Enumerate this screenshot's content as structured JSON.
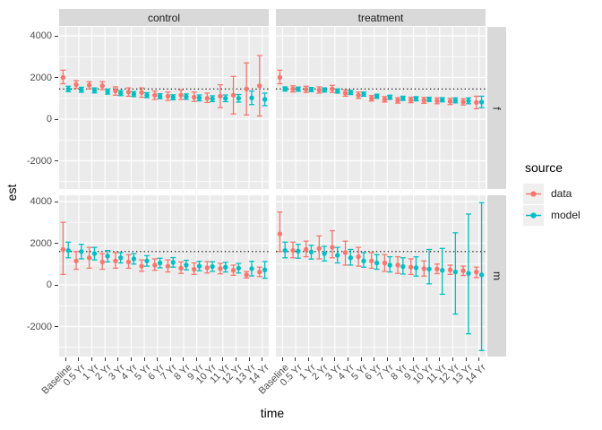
{
  "chart_data": {
    "type": "pointrange-faceted",
    "xlabel": "time",
    "ylabel": "est",
    "facet_cols": [
      "control",
      "treatment"
    ],
    "facet_rows": [
      "f",
      "m"
    ],
    "categories": [
      "Baseline",
      "0.5 Yr",
      "1 Yr",
      "2 Yr",
      "3 Yr",
      "4 Yr",
      "5 Yr",
      "6 Yr",
      "7 Yr",
      "8 Yr",
      "9 Yr",
      "10 Yr",
      "11 Yr",
      "12 Yr",
      "13 Yr",
      "14 Yr"
    ],
    "yticks": [
      4000,
      2000,
      0,
      -2000
    ],
    "yminor": [
      3000,
      1000,
      -1000,
      -3000
    ],
    "ylim_top": [
      4430,
      -3430
    ],
    "grid": true,
    "panel_bg": "#EBEBEB",
    "grid_color": "#FFFFFF",
    "strip_bg": "#D9D9D9",
    "series_colors": {
      "data": "#F8766D",
      "model": "#00BFC4"
    },
    "reference_lines": {
      "f": 1450,
      "m": 1600
    },
    "legend": {
      "title": "source",
      "position": "right",
      "items": [
        {
          "label": "data"
        },
        {
          "label": "model"
        }
      ]
    },
    "panels": [
      {
        "col": "control",
        "row": "f",
        "series": [
          {
            "name": "data",
            "est": [
              2000,
              1660,
              1630,
              1600,
              1350,
              1300,
              1280,
              1150,
              1100,
              1150,
              1050,
              1000,
              1100,
              1150,
              1450,
              1600
            ],
            "lo": [
              1700,
              1480,
              1450,
              1420,
              1150,
              1100,
              1050,
              950,
              900,
              950,
              850,
              800,
              550,
              250,
              200,
              150
            ],
            "hi": [
              2350,
              1850,
              1800,
              1800,
              1550,
              1500,
              1500,
              1350,
              1300,
              1400,
              1300,
              1250,
              1650,
              2050,
              2700,
              3050
            ]
          },
          {
            "name": "model",
            "est": [
              1450,
              1410,
              1380,
              1320,
              1250,
              1200,
              1150,
              1100,
              1050,
              1080,
              1020,
              980,
              1000,
              1000,
              1020,
              950
            ],
            "lo": [
              1320,
              1290,
              1260,
              1200,
              1130,
              1080,
              1030,
              980,
              930,
              950,
              880,
              840,
              840,
              820,
              700,
              650
            ],
            "hi": [
              1580,
              1530,
              1500,
              1440,
              1370,
              1320,
              1270,
              1220,
              1170,
              1210,
              1160,
              1120,
              1160,
              1180,
              1350,
              1250
            ]
          }
        ]
      },
      {
        "col": "treatment",
        "row": "f",
        "series": [
          {
            "name": "data",
            "est": [
              2000,
              1450,
              1430,
              1400,
              1450,
              1250,
              1150,
              1000,
              950,
              900,
              920,
              900,
              880,
              850,
              830,
              800
            ],
            "lo": [
              1700,
              1300,
              1280,
              1250,
              1280,
              1100,
              1000,
              870,
              820,
              770,
              790,
              760,
              740,
              700,
              680,
              500
            ],
            "hi": [
              2350,
              1600,
              1580,
              1550,
              1620,
              1400,
              1300,
              1130,
              1080,
              1030,
              1050,
              1040,
              1020,
              1000,
              980,
              1100
            ]
          },
          {
            "name": "model",
            "est": [
              1450,
              1440,
              1420,
              1400,
              1350,
              1280,
              1200,
              1100,
              1050,
              1000,
              980,
              950,
              930,
              900,
              880,
              820
            ],
            "lo": [
              1350,
              1340,
              1320,
              1300,
              1250,
              1180,
              1100,
              1000,
              950,
              900,
              880,
              850,
              830,
              780,
              740,
              550
            ],
            "hi": [
              1550,
              1540,
              1520,
              1500,
              1450,
              1380,
              1300,
              1200,
              1150,
              1100,
              1080,
              1050,
              1030,
              1020,
              1020,
              1100
            ]
          }
        ]
      },
      {
        "col": "control",
        "row": "m",
        "series": [
          {
            "name": "data",
            "est": [
              1700,
              1150,
              1300,
              1100,
              1150,
              1100,
              900,
              950,
              900,
              800,
              750,
              820,
              780,
              700,
              480,
              620
            ],
            "lo": [
              500,
              750,
              800,
              750,
              800,
              800,
              650,
              700,
              620,
              550,
              500,
              570,
              530,
              460,
              330,
              400
            ],
            "hi": [
              3000,
              1600,
              1800,
              1500,
              1550,
              1450,
              1200,
              1250,
              1200,
              1100,
              1050,
              1120,
              1030,
              950,
              640,
              850
            ]
          },
          {
            "name": "model",
            "est": [
              1650,
              1600,
              1500,
              1380,
              1300,
              1250,
              1150,
              1050,
              1080,
              950,
              900,
              880,
              850,
              800,
              780,
              720
            ],
            "lo": [
              1300,
              1250,
              1200,
              1100,
              1050,
              1000,
              900,
              820,
              850,
              720,
              680,
              650,
              620,
              570,
              430,
              320
            ],
            "hi": [
              2050,
              1950,
              1800,
              1650,
              1550,
              1500,
              1400,
              1280,
              1310,
              1180,
              1130,
              1110,
              1080,
              1030,
              1130,
              1120
            ]
          }
        ]
      },
      {
        "col": "treatment",
        "row": "m",
        "series": [
          {
            "name": "data",
            "est": [
              2450,
              1650,
              1700,
              1750,
              1800,
              1550,
              1350,
              1150,
              1050,
              950,
              850,
              780,
              760,
              720,
              680,
              620
            ],
            "lo": [
              1600,
              1300,
              1350,
              1250,
              1300,
              950,
              900,
              800,
              650,
              550,
              500,
              420,
              540,
              500,
              450,
              350
            ],
            "hi": [
              3500,
              2050,
              2100,
              2350,
              2600,
              2100,
              1800,
              1550,
              1450,
              1350,
              1250,
              1150,
              1000,
              950,
              900,
              850
            ]
          },
          {
            "name": "model",
            "est": [
              1650,
              1620,
              1580,
              1500,
              1420,
              1300,
              1150,
              1050,
              950,
              880,
              820,
              760,
              700,
              620,
              550,
              480
            ],
            "lo": [
              1300,
              1280,
              1240,
              1150,
              1050,
              950,
              850,
              750,
              620,
              520,
              420,
              50,
              -450,
              -1400,
              -2350,
              -3150
            ],
            "hi": [
              2050,
              1950,
              1900,
              1850,
              1800,
              1700,
              1550,
              1450,
              1350,
              1300,
              1350,
              1700,
              1750,
              2500,
              3400,
              3950
            ]
          }
        ]
      }
    ]
  }
}
